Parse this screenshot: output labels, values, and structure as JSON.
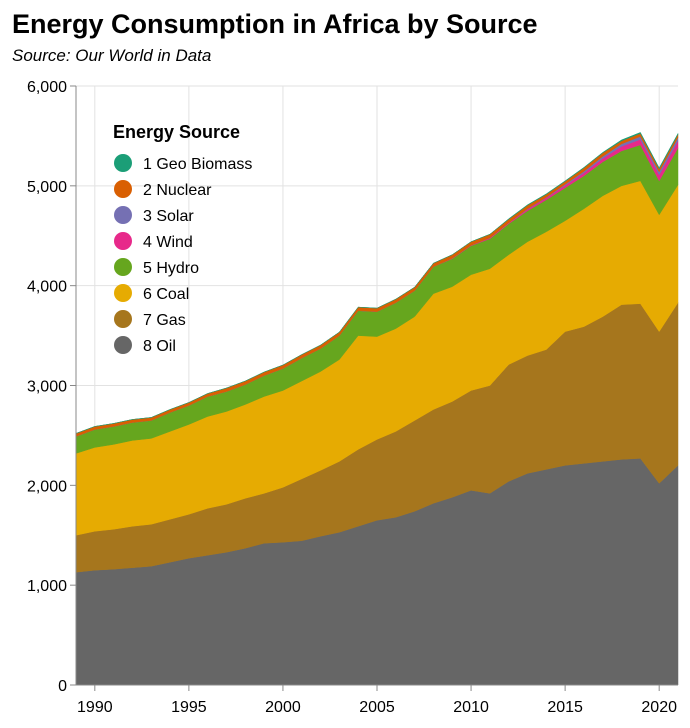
{
  "chart_data": {
    "type": "area",
    "stacked": true,
    "title": "Energy Consumption in Africa by Source",
    "subtitle": "Source: Our World in Data",
    "xlabel": "",
    "ylabel": "",
    "xlim": [
      1989,
      2021
    ],
    "ylim": [
      0,
      6000
    ],
    "x_ticks": [
      1990,
      1995,
      2000,
      2005,
      2010,
      2015,
      2020
    ],
    "x_tick_labels": [
      "1990",
      "1995",
      "2000",
      "2005",
      "2010",
      "2015",
      "2020"
    ],
    "y_ticks": [
      0,
      1000,
      2000,
      3000,
      4000,
      5000,
      6000
    ],
    "y_tick_labels": [
      "0",
      "1,000",
      "2,000",
      "3,000",
      "4,000",
      "5,000",
      "6,000"
    ],
    "grid": true,
    "legend": {
      "title": "Energy Source",
      "placement": "top-left"
    },
    "x": [
      1989,
      1990,
      1991,
      1992,
      1993,
      1994,
      1995,
      1996,
      1997,
      1998,
      1999,
      2000,
      2001,
      2002,
      2003,
      2004,
      2005,
      2006,
      2007,
      2008,
      2009,
      2010,
      2011,
      2012,
      2013,
      2014,
      2015,
      2016,
      2017,
      2018,
      2019,
      2020,
      2021
    ],
    "series": [
      {
        "name": "8 Oil",
        "color": "#666666",
        "values": [
          1130,
          1150,
          1160,
          1175,
          1190,
          1230,
          1270,
          1300,
          1330,
          1370,
          1420,
          1430,
          1445,
          1490,
          1530,
          1590,
          1650,
          1680,
          1740,
          1820,
          1880,
          1950,
          1920,
          2040,
          2120,
          2160,
          2200,
          2220,
          2240,
          2260,
          2270,
          2020,
          2200
        ]
      },
      {
        "name": "7 Gas",
        "color": "#a6761d",
        "values": [
          370,
          390,
          400,
          415,
          420,
          430,
          440,
          470,
          480,
          500,
          500,
          550,
          620,
          660,
          710,
          770,
          810,
          860,
          910,
          940,
          960,
          1000,
          1080,
          1170,
          1180,
          1200,
          1340,
          1370,
          1450,
          1550,
          1550,
          1520,
          1630
        ]
      },
      {
        "name": "6 Coal",
        "color": "#e6ab02",
        "values": [
          820,
          840,
          850,
          860,
          860,
          880,
          900,
          920,
          930,
          940,
          970,
          970,
          980,
          990,
          1020,
          1140,
          1030,
          1030,
          1040,
          1160,
          1150,
          1160,
          1170,
          1100,
          1140,
          1180,
          1110,
          1180,
          1210,
          1190,
          1230,
          1170,
          1180
        ]
      },
      {
        "name": "5 Hydro",
        "color": "#66a61e",
        "values": [
          170,
          180,
          180,
          180,
          180,
          190,
          190,
          200,
          200,
          200,
          210,
          220,
          230,
          230,
          240,
          250,
          250,
          260,
          260,
          270,
          280,
          290,
          300,
          310,
          310,
          320,
          330,
          330,
          340,
          350,
          360,
          340,
          370
        ]
      },
      {
        "name": "4 Wind",
        "color": "#e7298a",
        "values": [
          0,
          0,
          0,
          0,
          0,
          0,
          0,
          0,
          0,
          0,
          0,
          0,
          0,
          0,
          0,
          0,
          0,
          0,
          0,
          0,
          5,
          5,
          10,
          10,
          15,
          20,
          25,
          30,
          35,
          45,
          55,
          60,
          70
        ]
      },
      {
        "name": "3 Solar",
        "color": "#7570b3",
        "values": [
          0,
          0,
          0,
          0,
          0,
          0,
          0,
          0,
          0,
          0,
          0,
          0,
          0,
          0,
          0,
          0,
          0,
          0,
          0,
          0,
          0,
          0,
          0,
          0,
          5,
          5,
          10,
          15,
          20,
          25,
          30,
          30,
          35
        ]
      },
      {
        "name": "2 Nuclear",
        "color": "#d95f02",
        "values": [
          30,
          30,
          30,
          30,
          30,
          30,
          30,
          30,
          35,
          35,
          35,
          35,
          35,
          35,
          35,
          35,
          35,
          35,
          35,
          35,
          35,
          35,
          35,
          35,
          35,
          30,
          30,
          35,
          35,
          30,
          30,
          30,
          30
        ]
      },
      {
        "name": "1 Geo Biomass",
        "color": "#1b9e77",
        "values": [
          0,
          0,
          0,
          0,
          0,
          0,
          0,
          0,
          0,
          0,
          0,
          0,
          0,
          0,
          0,
          0,
          0,
          0,
          0,
          0,
          0,
          0,
          0,
          5,
          5,
          5,
          5,
          5,
          5,
          10,
          10,
          10,
          10
        ]
      }
    ],
    "legend_items": [
      {
        "label": "1 Geo Biomass",
        "color": "#1b9e77"
      },
      {
        "label": "2 Nuclear",
        "color": "#d95f02"
      },
      {
        "label": "3 Solar",
        "color": "#7570b3"
      },
      {
        "label": "4 Wind",
        "color": "#e7298a"
      },
      {
        "label": "5 Hydro",
        "color": "#66a61e"
      },
      {
        "label": "6 Coal",
        "color": "#e6ab02"
      },
      {
        "label": "7 Gas",
        "color": "#a6761d"
      },
      {
        "label": "8 Oil",
        "color": "#666666"
      }
    ]
  }
}
